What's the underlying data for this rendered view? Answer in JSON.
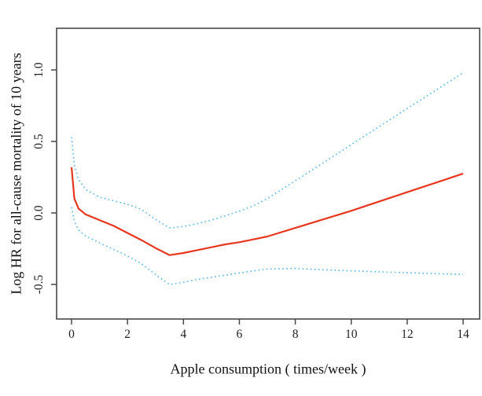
{
  "figure_title": "",
  "chart_data": {
    "type": "line",
    "title": "",
    "xlabel": "Apple consumption ( times/week )",
    "ylabel": "Log HR for all-cause mortality of 10 years",
    "xlim": [
      -0.55,
      14.6
    ],
    "ylim": [
      -0.74,
      1.29
    ],
    "grid": false,
    "legend": "none",
    "frame_color": "#474747",
    "tick_label_color": "#222222",
    "xticks": {
      "values": [
        0,
        2,
        4,
        6,
        8,
        10,
        12,
        14
      ],
      "labels": [
        "0",
        "2",
        "4",
        "6",
        "8",
        "10",
        "12",
        "14"
      ]
    },
    "yticks": {
      "values": [
        -0.5,
        0.0,
        0.5,
        1.0
      ],
      "labels": [
        "-0.5",
        "0.0",
        "0.5",
        "1.0"
      ]
    },
    "x": [
      0,
      0.1,
      0.25,
      0.5,
      1,
      1.5,
      2,
      2.5,
      3,
      3.5,
      4,
      4.5,
      5,
      5.5,
      6,
      6.5,
      7,
      8,
      9,
      10,
      11,
      12,
      13,
      14
    ],
    "series": [
      {
        "name": "estimate",
        "label": "Log HR point estimate",
        "color": "#e8371f",
        "style": "solid",
        "width": 2.2,
        "y": [
          0.32,
          0.1,
          0.03,
          -0.01,
          -0.05,
          -0.09,
          -0.14,
          -0.19,
          -0.245,
          -0.295,
          -0.28,
          -0.26,
          -0.24,
          -0.22,
          -0.205,
          -0.185,
          -0.165,
          -0.105,
          -0.045,
          0.015,
          0.08,
          0.145,
          0.21,
          0.275
        ]
      },
      {
        "name": "upper-ci",
        "label": "Upper 95% confidence limit",
        "color": "#5bb9f0",
        "style": "dotted",
        "width": 1.6,
        "y": [
          0.53,
          0.33,
          0.235,
          0.165,
          0.11,
          0.085,
          0.06,
          0.025,
          -0.045,
          -0.105,
          -0.095,
          -0.075,
          -0.05,
          -0.02,
          0.012,
          0.05,
          0.1,
          0.225,
          0.35,
          0.478,
          0.604,
          0.73,
          0.855,
          0.98
        ]
      },
      {
        "name": "lower-ci",
        "label": "Lower 95% confidence limit",
        "color": "#5bb9f0",
        "style": "dotted",
        "width": 1.6,
        "y": [
          0.04,
          -0.06,
          -0.12,
          -0.16,
          -0.21,
          -0.255,
          -0.3,
          -0.355,
          -0.43,
          -0.5,
          -0.485,
          -0.465,
          -0.45,
          -0.435,
          -0.42,
          -0.405,
          -0.393,
          -0.388,
          -0.398,
          -0.405,
          -0.412,
          -0.418,
          -0.424,
          -0.43
        ]
      }
    ]
  }
}
